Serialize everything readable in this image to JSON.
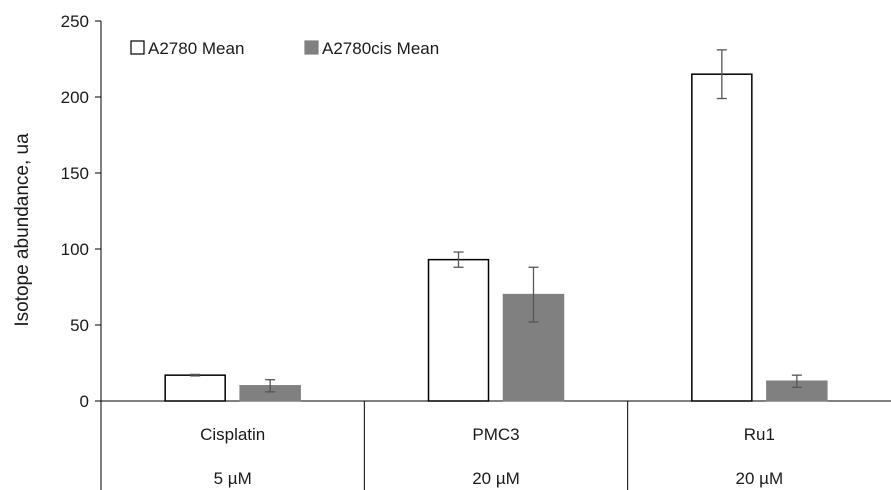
{
  "chart_data": {
    "type": "bar",
    "ylabel": "Isotope abundance, ua",
    "ylim": [
      0,
      250
    ],
    "yticks": [
      0,
      50,
      100,
      150,
      200,
      250
    ],
    "grid": false,
    "legend_position": "top-left",
    "categories": [
      "Cisplatin",
      "PMC3",
      "Ru1"
    ],
    "concentrations": [
      "5 µM",
      "20 µM",
      "20 µM"
    ],
    "series": [
      {
        "name": "A2780 Mean",
        "fill": "#ffffff",
        "stroke": "#000000",
        "values": [
          17,
          93,
          215
        ],
        "errors": [
          0.5,
          5,
          16
        ]
      },
      {
        "name": "A2780cis Mean",
        "fill": "#808080",
        "stroke": "#808080",
        "values": [
          10,
          70,
          13
        ],
        "errors": [
          4,
          18,
          4
        ]
      }
    ]
  }
}
